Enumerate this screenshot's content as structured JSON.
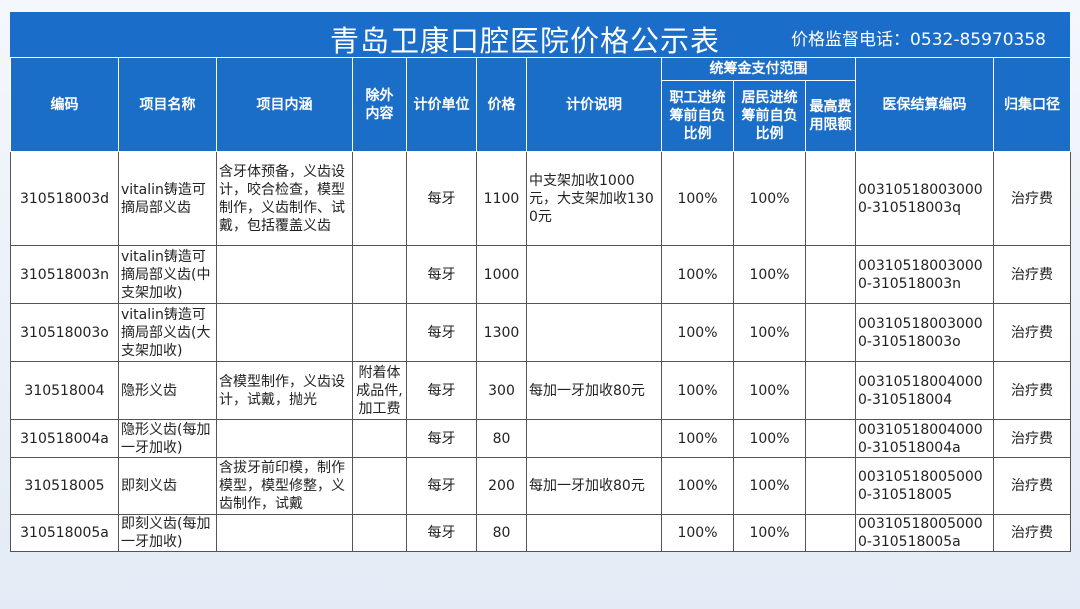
{
  "header": {
    "title": "青岛卫康口腔医院价格公示表",
    "phone": "价格监督电话：0532-85970358"
  },
  "table": {
    "group": "统筹金支付范围",
    "columns": [
      "编码",
      "项目名称",
      "项目内涵",
      "除外内容",
      "计价单位",
      "价格",
      "计价说明",
      "职工进统筹前自负比例",
      "居民进统筹前自负比例",
      "最高费用限额",
      "医保结算编码",
      "归集口径"
    ],
    "rows": [
      [
        "310518003d",
        "vitalin铸造可摘局部义齿",
        "含牙体预备，义齿设计，咬合检查，模型制作，义齿制作、试戴，包括覆盖义齿",
        null,
        "每牙",
        1100,
        "中支架加收1000元，大支架加收1300元",
        "100%",
        "100%",
        null,
        "003105180030000-310518003q",
        "治疗费"
      ],
      [
        "310518003n",
        "vitalin铸造可摘局部义齿(中支架加收)",
        null,
        null,
        "每牙",
        1000,
        null,
        "100%",
        "100%",
        null,
        "003105180030000-310518003n",
        "治疗费"
      ],
      [
        "310518003o",
        "vitalin铸造可摘局部义齿(大支架加收)",
        null,
        null,
        "每牙",
        1300,
        null,
        "100%",
        "100%",
        null,
        "003105180030000-310518003o",
        "治疗费"
      ],
      [
        "310518004",
        "隐形义齿",
        "含模型制作，义齿设计，试戴，抛光",
        "附着体成品件,加工费",
        "每牙",
        300,
        "每加一牙加收80元",
        "100%",
        "100%",
        null,
        "003105180040000-310518004",
        "治疗费"
      ],
      [
        "310518004a",
        "隐形义齿(每加一牙加收)",
        null,
        null,
        "每牙",
        80,
        null,
        "100%",
        "100%",
        null,
        "003105180040000-310518004a",
        "治疗费"
      ],
      [
        "310518005",
        "即刻义齿",
        "含拔牙前印模，制作模型，模型修整，义齿制作，试戴",
        null,
        "每牙",
        200,
        "每加一牙加收80元",
        "100%",
        "100%",
        null,
        "003105180050000-310518005",
        "治疗费"
      ],
      [
        "310518005a",
        "即刻义齿(每加一牙加收)",
        null,
        null,
        "每牙",
        80,
        null,
        "100%",
        "100%",
        null,
        "003105180050000-310518005a",
        "治疗费"
      ]
    ]
  }
}
